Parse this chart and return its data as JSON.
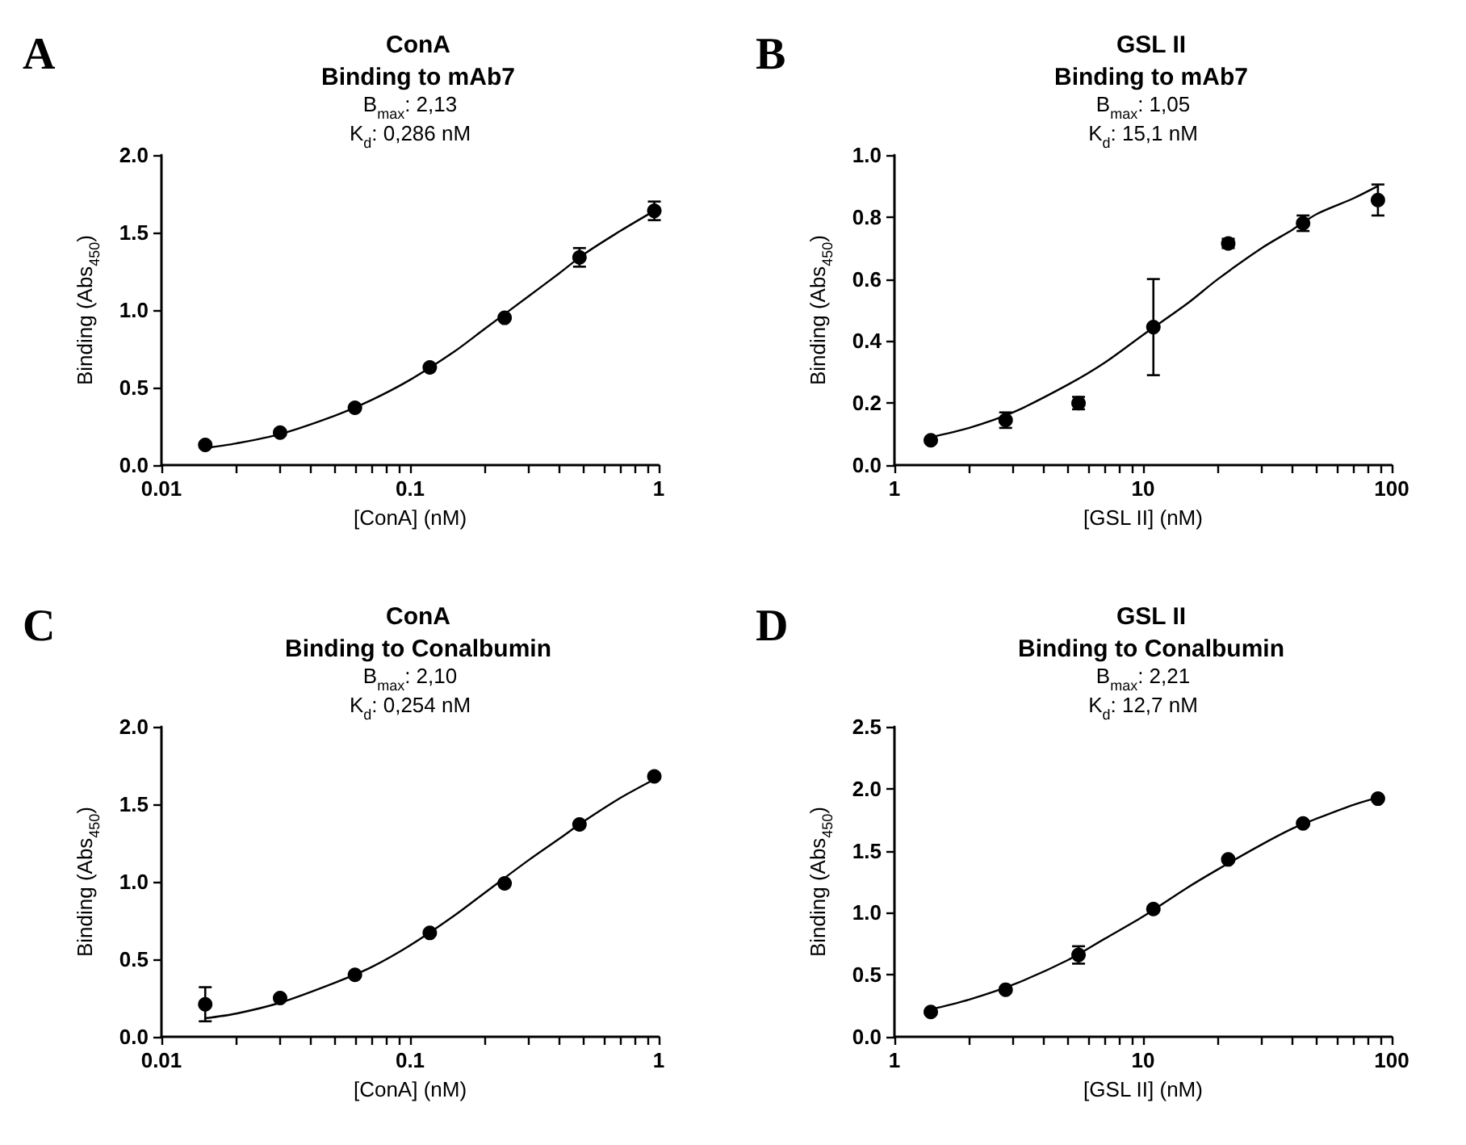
{
  "chart_data": [
    {
      "type": "scatter",
      "title": "ConA",
      "subtitle": "Binding to mAb7",
      "annotations": [
        "A",
        "B$_{max}$: 2,13",
        "K$_{d}$: 0,286 nM"
      ],
      "xlabel": "[ConA] (nM)",
      "ylabel": "Binding (Abs$_{450}$)",
      "log": "x",
      "xlim": [
        0.01,
        1
      ],
      "xticks": [
        0.01,
        {
          "value": 0.02,
          "label": null
        },
        {
          "value": 0.03,
          "label": null
        },
        {
          "value": 0.04,
          "label": null
        },
        {
          "value": 0.05,
          "label": null
        },
        {
          "value": 0.06,
          "label": null
        },
        {
          "value": 0.07,
          "label": null
        },
        {
          "value": 0.08,
          "label": null
        },
        {
          "value": 0.09,
          "label": null
        },
        0.1,
        {
          "value": 0.2,
          "label": null
        },
        {
          "value": 0.3,
          "label": null
        },
        {
          "value": 0.4,
          "label": null
        },
        {
          "value": 0.5,
          "label": null
        },
        {
          "value": 0.6,
          "label": null
        },
        {
          "value": 0.7,
          "label": null
        },
        {
          "value": 0.8,
          "label": null
        },
        {
          "value": 0.9,
          "label": null
        },
        1
      ],
      "ylim": [
        0,
        2
      ],
      "yticks": [
        {
          "value": 0,
          "label": "0.0"
        },
        {
          "value": 0.5,
          "label": "0.5"
        },
        {
          "value": 1,
          "label": "1.0"
        },
        {
          "value": 1.5,
          "label": "1.5"
        },
        {
          "value": 2,
          "label": "2.0"
        }
      ],
      "grid": false,
      "series": [
        {
          "type": "line",
          "color": "#000000",
          "marker": "none",
          "line_style": "solid",
          "x": [
            0.015,
            0.02,
            0.03,
            0.05,
            0.07,
            0.1,
            0.15,
            0.2,
            0.3,
            0.4,
            0.5,
            0.7,
            0.96
          ],
          "values": [
            0.11,
            0.14,
            0.2,
            0.32,
            0.42,
            0.55,
            0.73,
            0.88,
            1.09,
            1.24,
            1.36,
            1.51,
            1.64
          ]
        },
        {
          "type": "scatter",
          "color": "#000000",
          "marker": "circle",
          "x": [
            0.015,
            0.03,
            0.06,
            0.12,
            0.24,
            0.48,
            0.96
          ],
          "values": [
            0.13,
            0.21,
            0.37,
            0.63,
            0.95,
            1.34,
            1.64
          ],
          "errors": [
            null,
            null,
            null,
            null,
            null,
            [
              1.28,
              1.4
            ],
            [
              1.58,
              1.7
            ]
          ]
        }
      ]
    },
    {
      "type": "scatter",
      "title": "GSL II",
      "subtitle": "Binding to mAb7",
      "annotations": [
        "B",
        "B$_{max}$: 1,05",
        "K$_{d}$: 15,1 nM"
      ],
      "xlabel": "[GSL II] (nM)",
      "ylabel": "Binding (Abs$_{450}$)",
      "log": "x",
      "xlim": [
        1,
        100
      ],
      "xticks": [
        1,
        {
          "value": 2,
          "label": null
        },
        {
          "value": 3,
          "label": null
        },
        {
          "value": 4,
          "label": null
        },
        {
          "value": 5,
          "label": null
        },
        {
          "value": 6,
          "label": null
        },
        {
          "value": 7,
          "label": null
        },
        {
          "value": 8,
          "label": null
        },
        {
          "value": 9,
          "label": null
        },
        10,
        {
          "value": 20,
          "label": null
        },
        {
          "value": 30,
          "label": null
        },
        {
          "value": 40,
          "label": null
        },
        {
          "value": 50,
          "label": null
        },
        {
          "value": 60,
          "label": null
        },
        {
          "value": 70,
          "label": null
        },
        {
          "value": 80,
          "label": null
        },
        {
          "value": 90,
          "label": null
        },
        100
      ],
      "ylim": [
        0,
        1
      ],
      "yticks": [
        {
          "value": 0,
          "label": "0.0"
        },
        {
          "value": 0.2,
          "label": "0.2"
        },
        {
          "value": 0.4,
          "label": "0.4"
        },
        {
          "value": 0.6,
          "label": "0.6"
        },
        {
          "value": 0.8,
          "label": "0.8"
        },
        {
          "value": 1,
          "label": "1.0"
        }
      ],
      "grid": false,
      "series": [
        {
          "type": "line",
          "color": "#000000",
          "marker": "none",
          "line_style": "solid",
          "x": [
            1.4,
            2,
            3,
            5,
            7,
            10,
            15,
            20,
            30,
            40,
            50,
            70,
            88
          ],
          "values": [
            0.09,
            0.12,
            0.17,
            0.26,
            0.33,
            0.42,
            0.52,
            0.6,
            0.7,
            0.76,
            0.81,
            0.86,
            0.9
          ]
        },
        {
          "type": "scatter",
          "color": "#000000",
          "marker": "circle",
          "x": [
            1.4,
            2.8,
            5.5,
            11,
            22,
            44,
            88
          ],
          "values": [
            0.08,
            0.145,
            0.2,
            0.445,
            0.715,
            0.78,
            0.855
          ],
          "errors": [
            null,
            [
              0.12,
              0.17
            ],
            [
              0.18,
              0.22
            ],
            [
              0.29,
              0.6
            ],
            [
              0.7,
              0.73
            ],
            [
              0.755,
              0.805
            ],
            [
              0.805,
              0.905
            ]
          ]
        }
      ]
    },
    {
      "type": "scatter",
      "title": "ConA",
      "subtitle": "Binding to Conalbumin",
      "annotations": [
        "C",
        "B$_{max}$: 2,10",
        "K$_{d}$: 0,254 nM"
      ],
      "xlabel": "[ConA] (nM)",
      "ylabel": "Binding (Abs$_{450}$)",
      "log": "x",
      "xlim": [
        0.01,
        1
      ],
      "xticks": [
        0.01,
        {
          "value": 0.02,
          "label": null
        },
        {
          "value": 0.03,
          "label": null
        },
        {
          "value": 0.04,
          "label": null
        },
        {
          "value": 0.05,
          "label": null
        },
        {
          "value": 0.06,
          "label": null
        },
        {
          "value": 0.07,
          "label": null
        },
        {
          "value": 0.08,
          "label": null
        },
        {
          "value": 0.09,
          "label": null
        },
        0.1,
        {
          "value": 0.2,
          "label": null
        },
        {
          "value": 0.3,
          "label": null
        },
        {
          "value": 0.4,
          "label": null
        },
        {
          "value": 0.5,
          "label": null
        },
        {
          "value": 0.6,
          "label": null
        },
        {
          "value": 0.7,
          "label": null
        },
        {
          "value": 0.8,
          "label": null
        },
        {
          "value": 0.9,
          "label": null
        },
        1
      ],
      "ylim": [
        0,
        2
      ],
      "yticks": [
        {
          "value": 0,
          "label": "0.0"
        },
        {
          "value": 0.5,
          "label": "0.5"
        },
        {
          "value": 1,
          "label": "1.0"
        },
        {
          "value": 1.5,
          "label": "1.5"
        },
        {
          "value": 2,
          "label": "2.0"
        }
      ],
      "grid": false,
      "series": [
        {
          "type": "line",
          "color": "#000000",
          "marker": "none",
          "line_style": "solid",
          "x": [
            0.015,
            0.02,
            0.03,
            0.05,
            0.07,
            0.1,
            0.15,
            0.2,
            0.3,
            0.4,
            0.5,
            0.7,
            0.96
          ],
          "values": [
            0.12,
            0.15,
            0.22,
            0.35,
            0.45,
            0.59,
            0.78,
            0.93,
            1.14,
            1.28,
            1.39,
            1.54,
            1.66
          ]
        },
        {
          "type": "scatter",
          "color": "#000000",
          "marker": "circle",
          "x": [
            0.015,
            0.03,
            0.06,
            0.12,
            0.24,
            0.48,
            0.96
          ],
          "values": [
            0.21,
            0.25,
            0.4,
            0.67,
            0.99,
            1.37,
            1.68
          ],
          "errors": [
            [
              0.1,
              0.32
            ],
            null,
            null,
            null,
            null,
            null,
            null
          ]
        }
      ]
    },
    {
      "type": "scatter",
      "title": "GSL II",
      "subtitle": "Binding to Conalbumin",
      "annotations": [
        "D",
        "B$_{max}$: 2,21",
        "K$_{d}$: 12,7 nM"
      ],
      "xlabel": "[GSL II] (nM)",
      "ylabel": "Binding (Abs$_{450}$)",
      "log": "x",
      "xlim": [
        1,
        100
      ],
      "xticks": [
        1,
        {
          "value": 2,
          "label": null
        },
        {
          "value": 3,
          "label": null
        },
        {
          "value": 4,
          "label": null
        },
        {
          "value": 5,
          "label": null
        },
        {
          "value": 6,
          "label": null
        },
        {
          "value": 7,
          "label": null
        },
        {
          "value": 8,
          "label": null
        },
        {
          "value": 9,
          "label": null
        },
        10,
        {
          "value": 20,
          "label": null
        },
        {
          "value": 30,
          "label": null
        },
        {
          "value": 40,
          "label": null
        },
        {
          "value": 50,
          "label": null
        },
        {
          "value": 60,
          "label": null
        },
        {
          "value": 70,
          "label": null
        },
        {
          "value": 80,
          "label": null
        },
        {
          "value": 90,
          "label": null
        },
        100
      ],
      "ylim": [
        0,
        2.5
      ],
      "yticks": [
        {
          "value": 0,
          "label": "0.0"
        },
        {
          "value": 0.5,
          "label": "0.5"
        },
        {
          "value": 1,
          "label": "1.0"
        },
        {
          "value": 1.5,
          "label": "1.5"
        },
        {
          "value": 2,
          "label": "2.0"
        },
        {
          "value": 2.5,
          "label": "2.5"
        }
      ],
      "grid": false,
      "series": [
        {
          "type": "line",
          "color": "#000000",
          "marker": "none",
          "line_style": "solid",
          "x": [
            1.4,
            2,
            3,
            5,
            7,
            10,
            15,
            20,
            30,
            40,
            50,
            70,
            88
          ],
          "values": [
            0.22,
            0.3,
            0.42,
            0.62,
            0.79,
            0.97,
            1.2,
            1.35,
            1.55,
            1.68,
            1.76,
            1.87,
            1.93
          ]
        },
        {
          "type": "scatter",
          "color": "#000000",
          "marker": "circle",
          "x": [
            1.4,
            2.8,
            5.5,
            11,
            22,
            44,
            88
          ],
          "values": [
            0.2,
            0.38,
            0.66,
            1.03,
            1.43,
            1.72,
            1.92
          ],
          "errors": [
            null,
            null,
            [
              0.59,
              0.73
            ],
            null,
            null,
            null,
            null
          ]
        }
      ]
    }
  ]
}
